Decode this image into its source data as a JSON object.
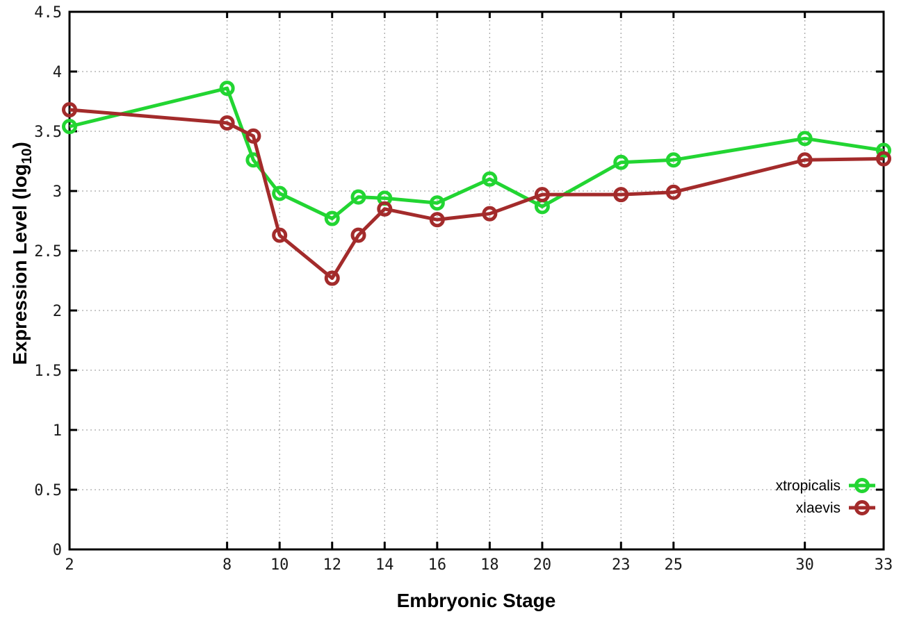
{
  "chart_data": {
    "type": "line",
    "title": "",
    "xlabel": "Embryonic Stage",
    "ylabel": "Expression Level (log10)",
    "ylabel_pre": "Expression Level (log",
    "ylabel_sub": "10",
    "ylabel_post": ")",
    "x": [
      2,
      8,
      9,
      10,
      12,
      13,
      14,
      16,
      18,
      20,
      23,
      25,
      30,
      33
    ],
    "xticks": [
      2,
      8,
      10,
      12,
      14,
      16,
      18,
      20,
      23,
      25,
      30,
      33
    ],
    "yticks": [
      0,
      0.5,
      1,
      1.5,
      2,
      2.5,
      3,
      3.5,
      4,
      4.5
    ],
    "xlim": [
      2,
      33
    ],
    "ylim": [
      0,
      4.5
    ],
    "grid": true,
    "legend_position": "bottom-right",
    "series": [
      {
        "name": "xtropicalis",
        "color": "#22d532",
        "values": [
          3.54,
          3.86,
          3.26,
          2.98,
          2.77,
          2.95,
          2.94,
          2.9,
          3.1,
          2.87,
          3.24,
          3.26,
          3.44,
          3.34
        ]
      },
      {
        "name": "xlaevis",
        "color": "#a32b2b",
        "values": [
          3.68,
          3.57,
          3.46,
          2.63,
          2.27,
          2.63,
          2.85,
          2.76,
          2.81,
          2.97,
          2.97,
          2.99,
          3.26,
          3.27
        ]
      }
    ]
  },
  "style_colors": {
    "grid": "#a8a8a8",
    "border": "#000000",
    "tick_text": "#1a1a1a"
  }
}
